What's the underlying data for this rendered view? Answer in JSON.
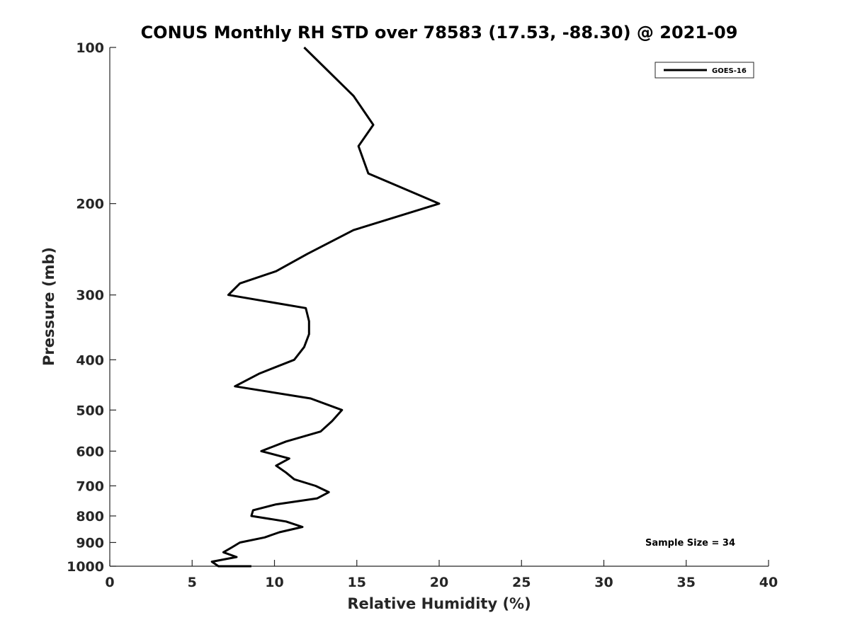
{
  "chart_data": {
    "type": "line",
    "title": "CONUS Monthly RH STD over 78583 (17.53, -88.30) @ 2021-09",
    "xlabel": "Relative Humidity (%)",
    "ylabel": "Pressure (mb)",
    "xlim": [
      0,
      40
    ],
    "ylim": [
      100,
      1000
    ],
    "yscale": "log",
    "y_reversed": true,
    "x_ticks": [
      0,
      5,
      10,
      15,
      20,
      25,
      30,
      35,
      40
    ],
    "y_ticks": [
      100,
      200,
      300,
      400,
      500,
      600,
      700,
      800,
      900,
      1000
    ],
    "grid": false,
    "legend_position": "top-right",
    "annotation": "Sample Size = 34",
    "series": [
      {
        "name": "GOES-16",
        "color": "#000000",
        "x": [
          11.8,
          14.8,
          16.0,
          15.1,
          15.7,
          20.0,
          14.8,
          12.0,
          10.1,
          7.9,
          7.2,
          11.9,
          12.1,
          12.1,
          11.8,
          11.2,
          9.1,
          7.6,
          12.2,
          14.1,
          13.5,
          12.8,
          10.7,
          9.2,
          10.9,
          10.1,
          10.7,
          11.2,
          12.5,
          13.3,
          12.6,
          10.1,
          8.7,
          8.6,
          10.7,
          11.7,
          10.3,
          9.4,
          7.9,
          7.4,
          6.9,
          7.7,
          6.2,
          6.6,
          8.6
        ],
        "y": [
          100,
          124,
          141,
          155,
          175,
          200,
          225,
          250,
          270,
          285,
          300,
          318,
          337,
          357,
          378,
          400,
          425,
          450,
          475,
          500,
          525,
          550,
          575,
          600,
          620,
          640,
          660,
          680,
          700,
          720,
          740,
          760,
          780,
          800,
          820,
          840,
          860,
          880,
          900,
          920,
          940,
          960,
          980,
          1000,
          1025
        ]
      }
    ]
  }
}
